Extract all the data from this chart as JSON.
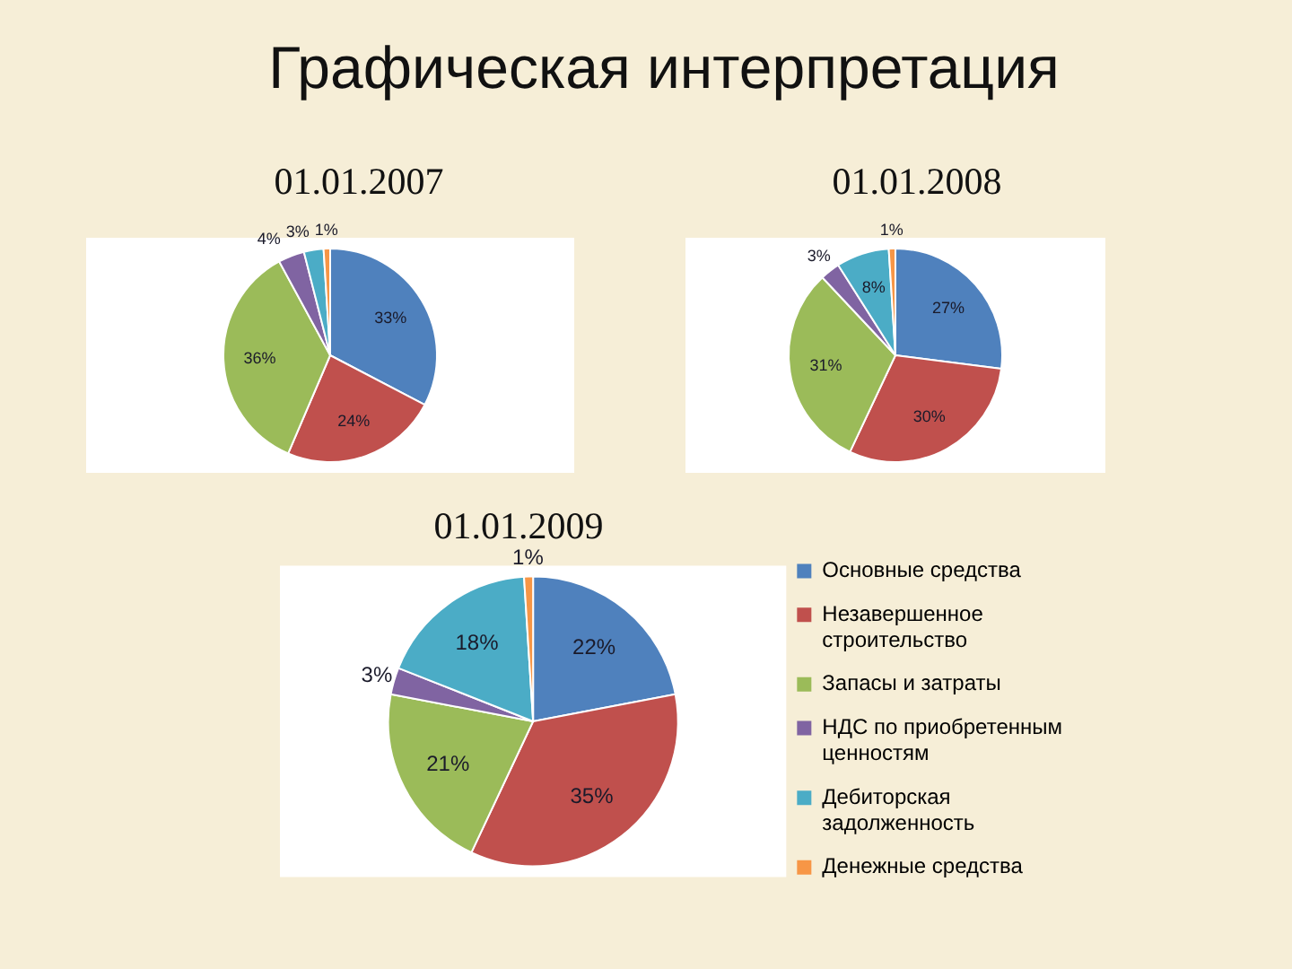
{
  "chart_data": [
    {
      "type": "pie",
      "title": "01.01.2007",
      "annotations": [
        "Графическая интерпретация"
      ],
      "values": [
        33,
        24,
        36,
        4,
        3,
        1
      ],
      "colors": [
        "#4f81bd",
        "#c0504d",
        "#9bbb59",
        "#8064a2",
        "#4bacc6",
        "#f79646"
      ],
      "value_labels": [
        "33%",
        "24%",
        "36%",
        "4%",
        "3%",
        "1%"
      ],
      "legend": false
    },
    {
      "type": "pie",
      "title": "01.01.2008",
      "values": [
        27,
        30,
        31,
        3,
        8,
        1
      ],
      "colors": [
        "#4f81bd",
        "#c0504d",
        "#9bbb59",
        "#8064a2",
        "#4bacc6",
        "#f79646"
      ],
      "value_labels": [
        "27%",
        "30%",
        "31%",
        "3%",
        "8%",
        "1%"
      ],
      "legend": false
    },
    {
      "type": "pie",
      "title": "01.01.2009",
      "categories": [
        "Основные средства",
        "Незавершенное строительство",
        "Запасы и затраты",
        "НДС по приобретенным ценностям",
        "Дебиторская задолженность",
        "Денежные средства"
      ],
      "values": [
        22,
        35,
        21,
        3,
        18,
        1
      ],
      "colors": [
        "#4f81bd",
        "#c0504d",
        "#9bbb59",
        "#8064a2",
        "#4bacc6",
        "#f79646"
      ],
      "value_labels": [
        "22%",
        "35%",
        "21%",
        "3%",
        "18%",
        "1%"
      ],
      "legend": "right"
    }
  ]
}
